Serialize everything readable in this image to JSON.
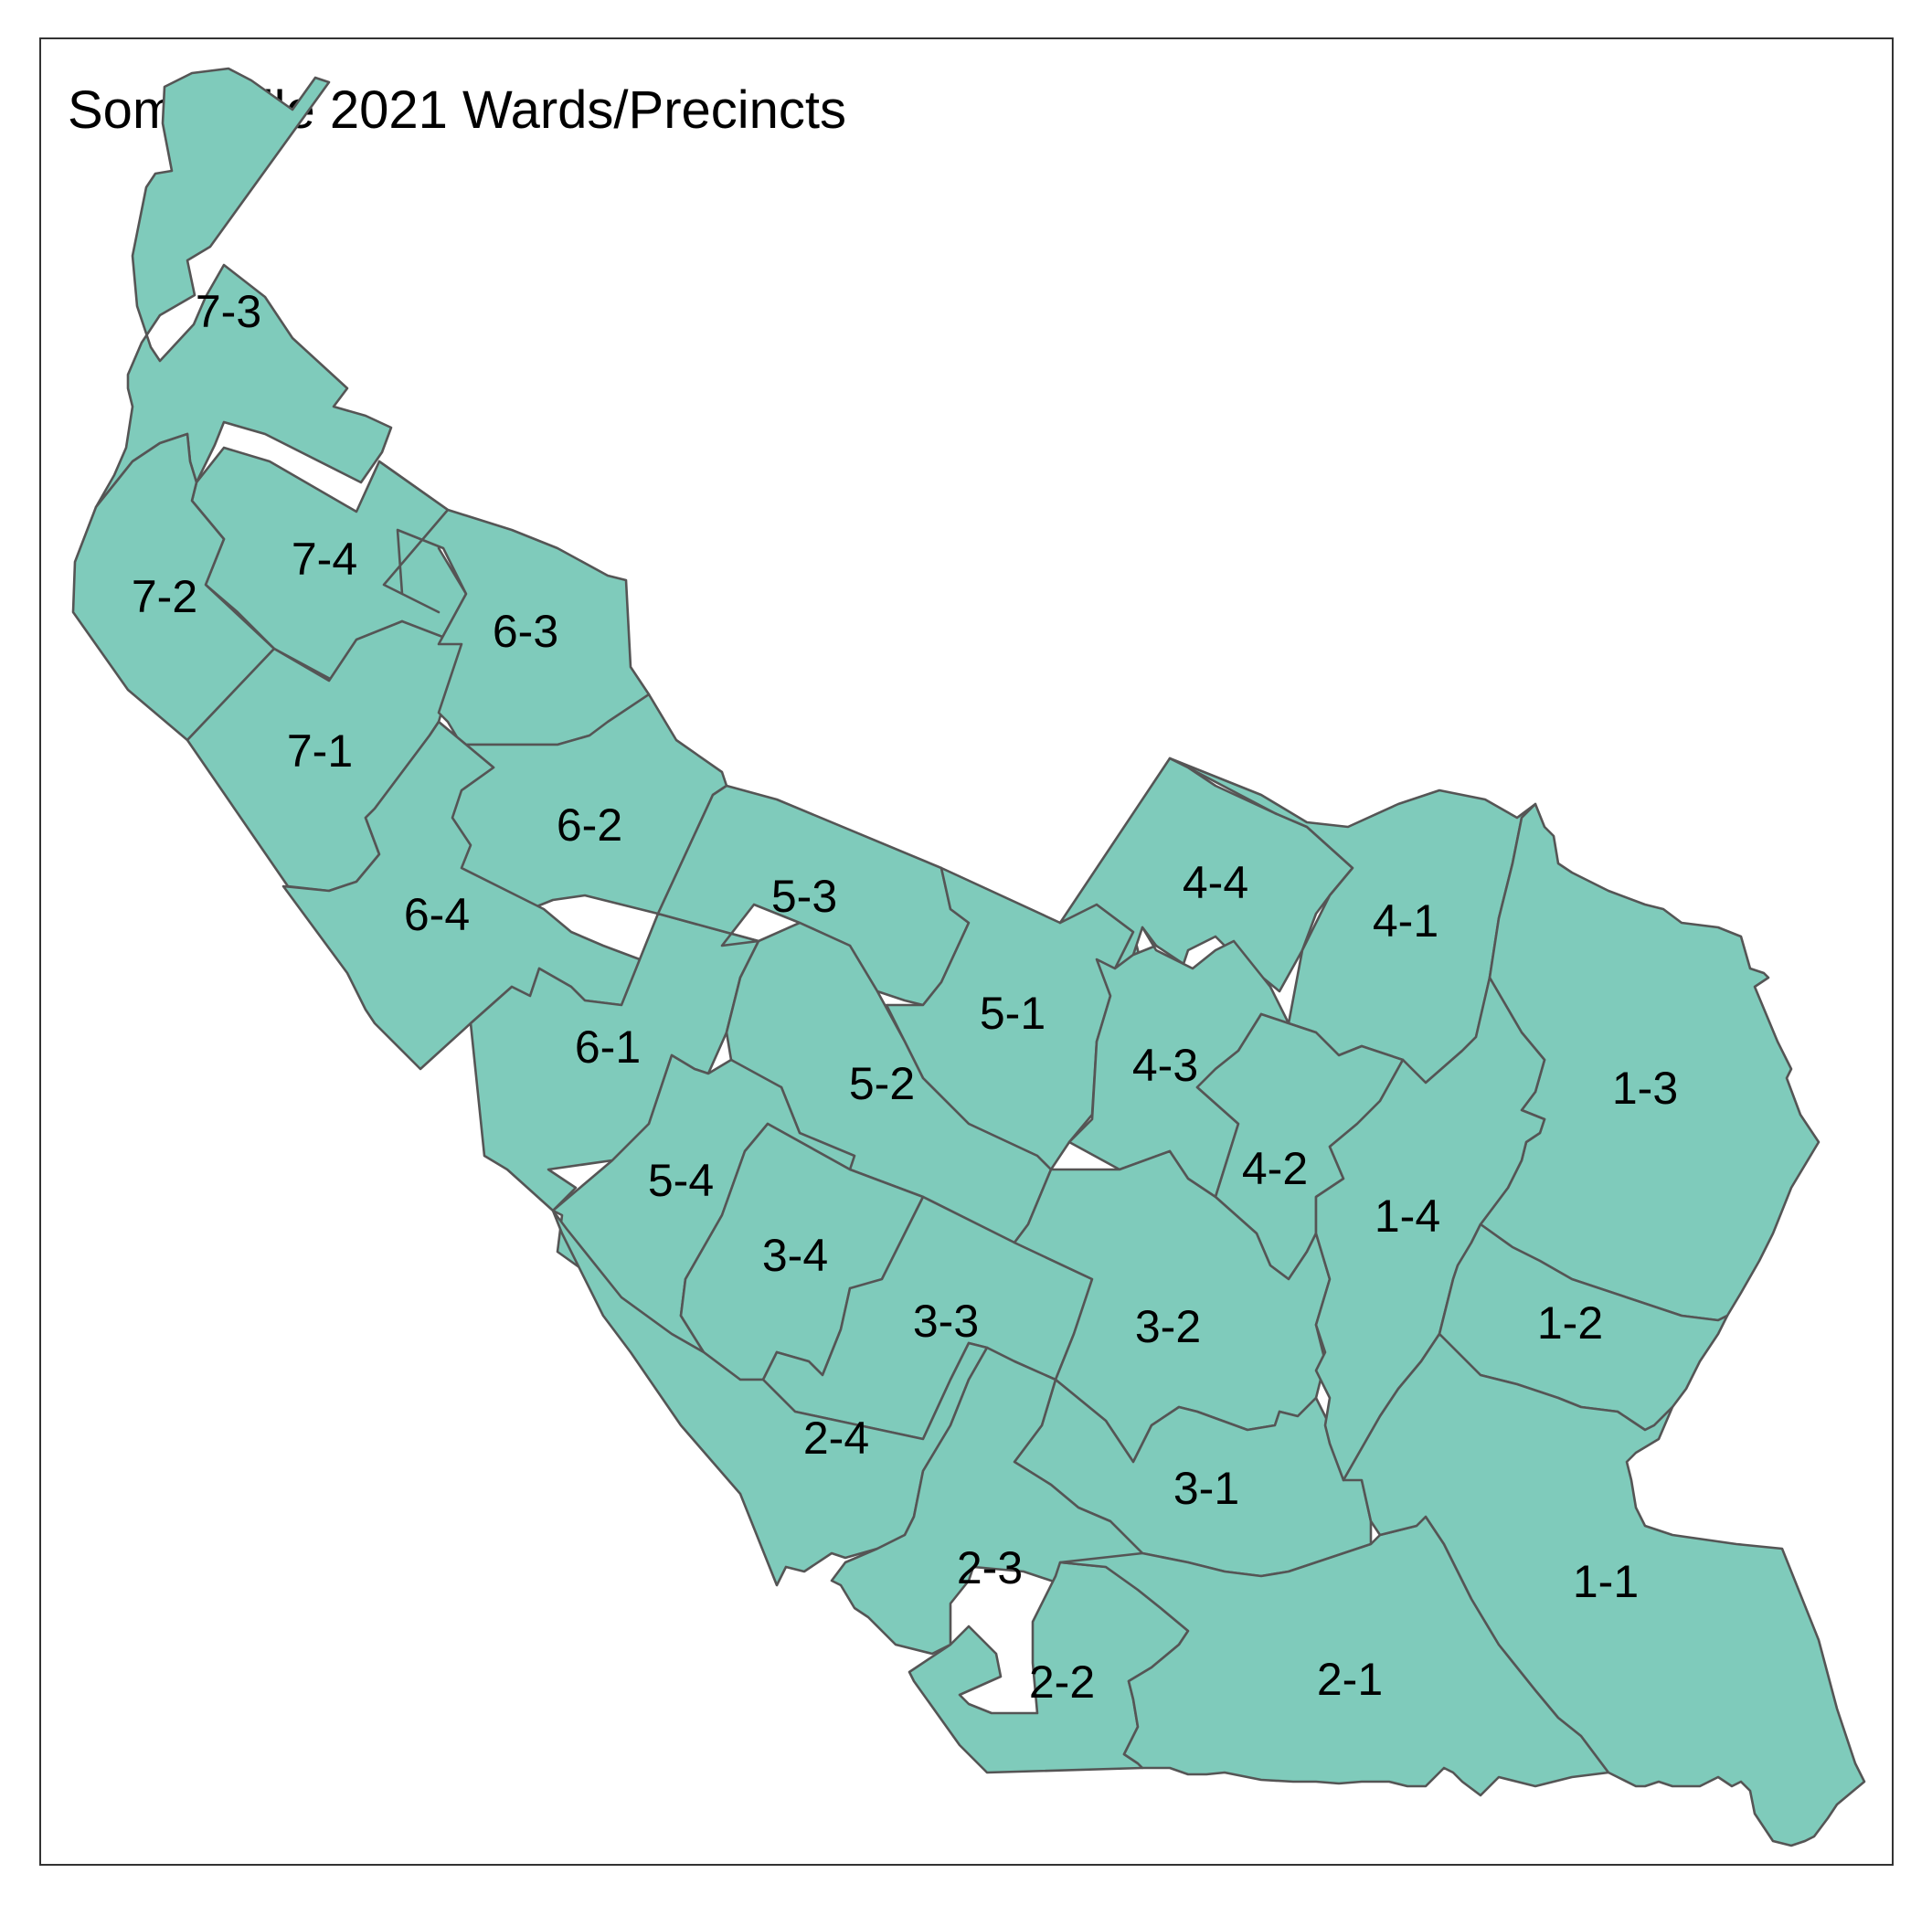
{
  "map": {
    "title": "Somerville 2021 Wards/Precincts",
    "fill_color": "#7fcbbb",
    "border_color": "#555555",
    "precinct_labels": [
      "7-3",
      "7-4",
      "7-2",
      "7-1",
      "6-3",
      "6-2",
      "6-4",
      "6-1",
      "5-3",
      "5-1",
      "5-2",
      "5-4",
      "4-4",
      "4-1",
      "4-3",
      "4-2",
      "3-4",
      "3-3",
      "3-2",
      "3-1",
      "2-4",
      "2-3",
      "2-2",
      "2-1",
      "1-3",
      "1-4",
      "1-2",
      "1-1"
    ]
  }
}
